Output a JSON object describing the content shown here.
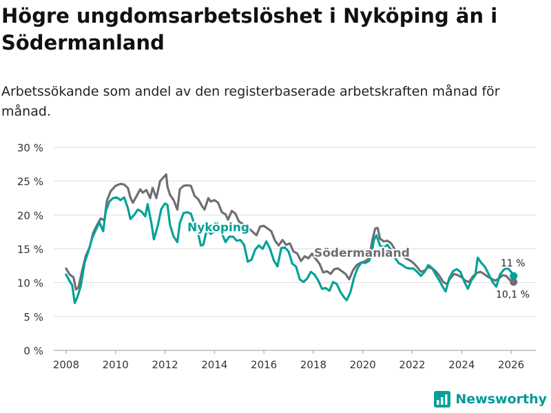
{
  "title": "Högre ungdomsarbetslöshet i Nyköping än i Södermanland",
  "subtitle": "Arbetssökande som andel av den registerbaserade arbetskraften månad för månad.",
  "brand": "Newsworthy",
  "colors": {
    "nykoping": "#00A197",
    "sodermanland": "#6E6E72",
    "grid": "#DDDDDD",
    "text": "#333333"
  },
  "chart_data": {
    "type": "line",
    "title": "Högre ungdomsarbetslöshet i Nyköping än i Södermanland",
    "xlabel": "",
    "ylabel": "",
    "xlim": [
      2007.5,
      2027.0
    ],
    "ylim": [
      0,
      30
    ],
    "x_ticks": [
      2008,
      2010,
      2012,
      2014,
      2016,
      2018,
      2020,
      2022,
      2024,
      2026
    ],
    "x_tick_labels": [
      "2008",
      "2010",
      "2012",
      "2014",
      "2016",
      "2018",
      "2020",
      "2022",
      "2024",
      "2026"
    ],
    "y_ticks": [
      0,
      5,
      10,
      15,
      20,
      25,
      30
    ],
    "y_tick_labels": [
      "0 %",
      "5 %",
      "10 %",
      "15 %",
      "20 %",
      "25 %",
      "30 %"
    ],
    "series": [
      {
        "name": "Södermanland",
        "label": "Södermanland",
        "end_label": "10,1 %",
        "points": [
          [
            2008.0,
            12.1
          ],
          [
            2008.15,
            11.2
          ],
          [
            2008.3,
            10.8
          ],
          [
            2008.4,
            9.0
          ],
          [
            2008.5,
            9.3
          ],
          [
            2008.65,
            11.8
          ],
          [
            2008.8,
            14.0
          ],
          [
            2008.95,
            15.2
          ],
          [
            2009.1,
            17.4
          ],
          [
            2009.25,
            18.5
          ],
          [
            2009.4,
            19.5
          ],
          [
            2009.55,
            19.2
          ],
          [
            2009.65,
            22.1
          ],
          [
            2009.8,
            23.5
          ],
          [
            2010.0,
            24.3
          ],
          [
            2010.2,
            24.6
          ],
          [
            2010.35,
            24.5
          ],
          [
            2010.5,
            24.0
          ],
          [
            2010.6,
            22.6
          ],
          [
            2010.7,
            21.8
          ],
          [
            2010.85,
            22.8
          ],
          [
            2011.0,
            23.8
          ],
          [
            2011.1,
            23.3
          ],
          [
            2011.25,
            23.7
          ],
          [
            2011.4,
            22.5
          ],
          [
            2011.5,
            24.0
          ],
          [
            2011.65,
            22.5
          ],
          [
            2011.8,
            25.0
          ],
          [
            2011.95,
            25.6
          ],
          [
            2012.05,
            26.0
          ],
          [
            2012.1,
            24.2
          ],
          [
            2012.2,
            23.0
          ],
          [
            2012.35,
            22.2
          ],
          [
            2012.5,
            20.8
          ],
          [
            2012.6,
            23.8
          ],
          [
            2012.75,
            24.3
          ],
          [
            2012.9,
            24.4
          ],
          [
            2013.05,
            24.3
          ],
          [
            2013.2,
            22.8
          ],
          [
            2013.35,
            22.3
          ],
          [
            2013.5,
            21.3
          ],
          [
            2013.6,
            20.8
          ],
          [
            2013.75,
            22.5
          ],
          [
            2013.85,
            22.0
          ],
          [
            2014.0,
            22.2
          ],
          [
            2014.15,
            21.8
          ],
          [
            2014.3,
            20.4
          ],
          [
            2014.45,
            20.1
          ],
          [
            2014.55,
            19.3
          ],
          [
            2014.7,
            20.6
          ],
          [
            2014.85,
            20.2
          ],
          [
            2015.0,
            19.0
          ],
          [
            2015.15,
            18.7
          ],
          [
            2015.3,
            17.8
          ],
          [
            2015.4,
            18.0
          ],
          [
            2015.55,
            17.5
          ],
          [
            2015.7,
            17.0
          ],
          [
            2015.85,
            18.3
          ],
          [
            2016.0,
            18.4
          ],
          [
            2016.15,
            18.0
          ],
          [
            2016.3,
            17.6
          ],
          [
            2016.45,
            16.2
          ],
          [
            2016.6,
            15.5
          ],
          [
            2016.75,
            16.3
          ],
          [
            2016.9,
            15.6
          ],
          [
            2017.05,
            15.8
          ],
          [
            2017.2,
            14.6
          ],
          [
            2017.35,
            14.3
          ],
          [
            2017.5,
            13.2
          ],
          [
            2017.65,
            13.9
          ],
          [
            2017.8,
            13.6
          ],
          [
            2017.95,
            14.3
          ],
          [
            2018.1,
            13.5
          ],
          [
            2018.25,
            12.8
          ],
          [
            2018.4,
            11.5
          ],
          [
            2018.55,
            11.7
          ],
          [
            2018.7,
            11.3
          ],
          [
            2018.85,
            12.0
          ],
          [
            2019.0,
            12.1
          ],
          [
            2019.15,
            11.7
          ],
          [
            2019.3,
            11.3
          ],
          [
            2019.45,
            10.5
          ],
          [
            2019.6,
            11.8
          ],
          [
            2019.75,
            12.6
          ],
          [
            2019.9,
            12.9
          ],
          [
            2020.05,
            13.1
          ],
          [
            2020.2,
            13.4
          ],
          [
            2020.3,
            14.6
          ],
          [
            2020.4,
            16.5
          ],
          [
            2020.5,
            18.0
          ],
          [
            2020.6,
            18.1
          ],
          [
            2020.7,
            16.5
          ],
          [
            2020.85,
            16.1
          ],
          [
            2021.0,
            16.2
          ],
          [
            2021.15,
            15.8
          ],
          [
            2021.3,
            14.9
          ],
          [
            2021.45,
            14.4
          ],
          [
            2021.6,
            13.9
          ],
          [
            2021.75,
            13.6
          ],
          [
            2021.9,
            13.3
          ],
          [
            2022.05,
            12.9
          ],
          [
            2022.2,
            12.3
          ],
          [
            2022.35,
            11.6
          ],
          [
            2022.5,
            11.8
          ],
          [
            2022.65,
            12.3
          ],
          [
            2022.8,
            12.1
          ],
          [
            2022.95,
            11.7
          ],
          [
            2023.1,
            11.0
          ],
          [
            2023.25,
            10.1
          ],
          [
            2023.4,
            9.8
          ],
          [
            2023.55,
            10.7
          ],
          [
            2023.7,
            11.3
          ],
          [
            2023.85,
            11.1
          ],
          [
            2024.0,
            10.8
          ],
          [
            2024.15,
            10.3
          ],
          [
            2024.3,
            10.1
          ],
          [
            2024.45,
            10.9
          ],
          [
            2024.6,
            11.4
          ],
          [
            2024.75,
            11.6
          ],
          [
            2024.9,
            11.3
          ],
          [
            2025.05,
            10.9
          ],
          [
            2025.2,
            10.6
          ],
          [
            2025.35,
            10.3
          ],
          [
            2025.5,
            10.6
          ],
          [
            2025.65,
            11.1
          ],
          [
            2025.8,
            11.0
          ],
          [
            2025.95,
            10.4
          ],
          [
            2026.1,
            10.1
          ]
        ]
      },
      {
        "name": "Nyköping",
        "label": "Nyköping",
        "end_label": "11 %",
        "points": [
          [
            2008.0,
            11.2
          ],
          [
            2008.15,
            10.2
          ],
          [
            2008.25,
            9.6
          ],
          [
            2008.35,
            7.0
          ],
          [
            2008.45,
            7.8
          ],
          [
            2008.6,
            9.6
          ],
          [
            2008.75,
            13.0
          ],
          [
            2008.9,
            14.6
          ],
          [
            2009.05,
            16.5
          ],
          [
            2009.2,
            17.8
          ],
          [
            2009.35,
            18.9
          ],
          [
            2009.5,
            17.6
          ],
          [
            2009.6,
            20.5
          ],
          [
            2009.75,
            22.0
          ],
          [
            2009.9,
            22.5
          ],
          [
            2010.05,
            22.6
          ],
          [
            2010.2,
            22.2
          ],
          [
            2010.35,
            22.6
          ],
          [
            2010.5,
            21.0
          ],
          [
            2010.6,
            19.4
          ],
          [
            2010.75,
            20.0
          ],
          [
            2010.9,
            20.8
          ],
          [
            2011.05,
            20.5
          ],
          [
            2011.2,
            19.8
          ],
          [
            2011.3,
            21.6
          ],
          [
            2011.45,
            18.8
          ],
          [
            2011.55,
            16.4
          ],
          [
            2011.7,
            18.3
          ],
          [
            2011.85,
            20.9
          ],
          [
            2012.0,
            21.7
          ],
          [
            2012.1,
            21.5
          ],
          [
            2012.2,
            18.6
          ],
          [
            2012.35,
            16.8
          ],
          [
            2012.5,
            16.0
          ],
          [
            2012.6,
            18.8
          ],
          [
            2012.75,
            20.3
          ],
          [
            2012.9,
            20.4
          ],
          [
            2013.05,
            20.2
          ],
          [
            2013.2,
            18.5
          ],
          [
            2013.35,
            17.1
          ],
          [
            2013.45,
            15.5
          ],
          [
            2013.55,
            15.6
          ],
          [
            2013.7,
            18.0
          ],
          [
            2013.85,
            17.2
          ],
          [
            2014.0,
            17.6
          ],
          [
            2014.15,
            18.3
          ],
          [
            2014.3,
            17.3
          ],
          [
            2014.45,
            16.0
          ],
          [
            2014.6,
            16.8
          ],
          [
            2014.75,
            16.8
          ],
          [
            2014.9,
            16.2
          ],
          [
            2015.05,
            16.3
          ],
          [
            2015.2,
            15.6
          ],
          [
            2015.35,
            13.1
          ],
          [
            2015.5,
            13.4
          ],
          [
            2015.65,
            14.9
          ],
          [
            2015.8,
            15.5
          ],
          [
            2015.95,
            15.0
          ],
          [
            2016.1,
            16.1
          ],
          [
            2016.25,
            15.0
          ],
          [
            2016.4,
            13.3
          ],
          [
            2016.55,
            12.4
          ],
          [
            2016.7,
            15.1
          ],
          [
            2016.85,
            15.2
          ],
          [
            2017.0,
            14.6
          ],
          [
            2017.15,
            12.8
          ],
          [
            2017.3,
            12.4
          ],
          [
            2017.45,
            10.5
          ],
          [
            2017.6,
            10.1
          ],
          [
            2017.75,
            10.6
          ],
          [
            2017.9,
            11.6
          ],
          [
            2018.05,
            11.2
          ],
          [
            2018.2,
            10.3
          ],
          [
            2018.35,
            9.1
          ],
          [
            2018.5,
            9.2
          ],
          [
            2018.65,
            8.8
          ],
          [
            2018.8,
            10.1
          ],
          [
            2018.95,
            9.8
          ],
          [
            2019.1,
            8.6
          ],
          [
            2019.25,
            7.8
          ],
          [
            2019.35,
            7.4
          ],
          [
            2019.5,
            8.6
          ],
          [
            2019.65,
            10.8
          ],
          [
            2019.8,
            12.2
          ],
          [
            2019.95,
            13.0
          ],
          [
            2020.1,
            12.9
          ],
          [
            2020.25,
            13.2
          ],
          [
            2020.35,
            14.2
          ],
          [
            2020.45,
            16.3
          ],
          [
            2020.55,
            17.0
          ],
          [
            2020.7,
            15.5
          ],
          [
            2020.85,
            15.2
          ],
          [
            2021.0,
            15.6
          ],
          [
            2021.15,
            14.8
          ],
          [
            2021.3,
            13.7
          ],
          [
            2021.45,
            12.9
          ],
          [
            2021.6,
            12.6
          ],
          [
            2021.75,
            12.2
          ],
          [
            2021.9,
            12.1
          ],
          [
            2022.05,
            12.1
          ],
          [
            2022.2,
            11.6
          ],
          [
            2022.35,
            11.0
          ],
          [
            2022.5,
            11.6
          ],
          [
            2022.65,
            12.6
          ],
          [
            2022.8,
            12.2
          ],
          [
            2022.95,
            11.2
          ],
          [
            2023.1,
            10.3
          ],
          [
            2023.25,
            9.3
          ],
          [
            2023.35,
            8.7
          ],
          [
            2023.5,
            10.7
          ],
          [
            2023.65,
            11.7
          ],
          [
            2023.8,
            12.0
          ],
          [
            2023.95,
            11.6
          ],
          [
            2024.1,
            10.2
          ],
          [
            2024.25,
            9.1
          ],
          [
            2024.4,
            10.4
          ],
          [
            2024.55,
            11.1
          ],
          [
            2024.65,
            13.7
          ],
          [
            2024.8,
            12.9
          ],
          [
            2024.95,
            12.3
          ],
          [
            2025.1,
            11.2
          ],
          [
            2025.25,
            10.1
          ],
          [
            2025.4,
            9.4
          ],
          [
            2025.55,
            11.2
          ],
          [
            2025.7,
            11.9
          ],
          [
            2025.85,
            12.2
          ],
          [
            2026.0,
            11.6
          ],
          [
            2026.1,
            11.0
          ]
        ]
      }
    ]
  }
}
